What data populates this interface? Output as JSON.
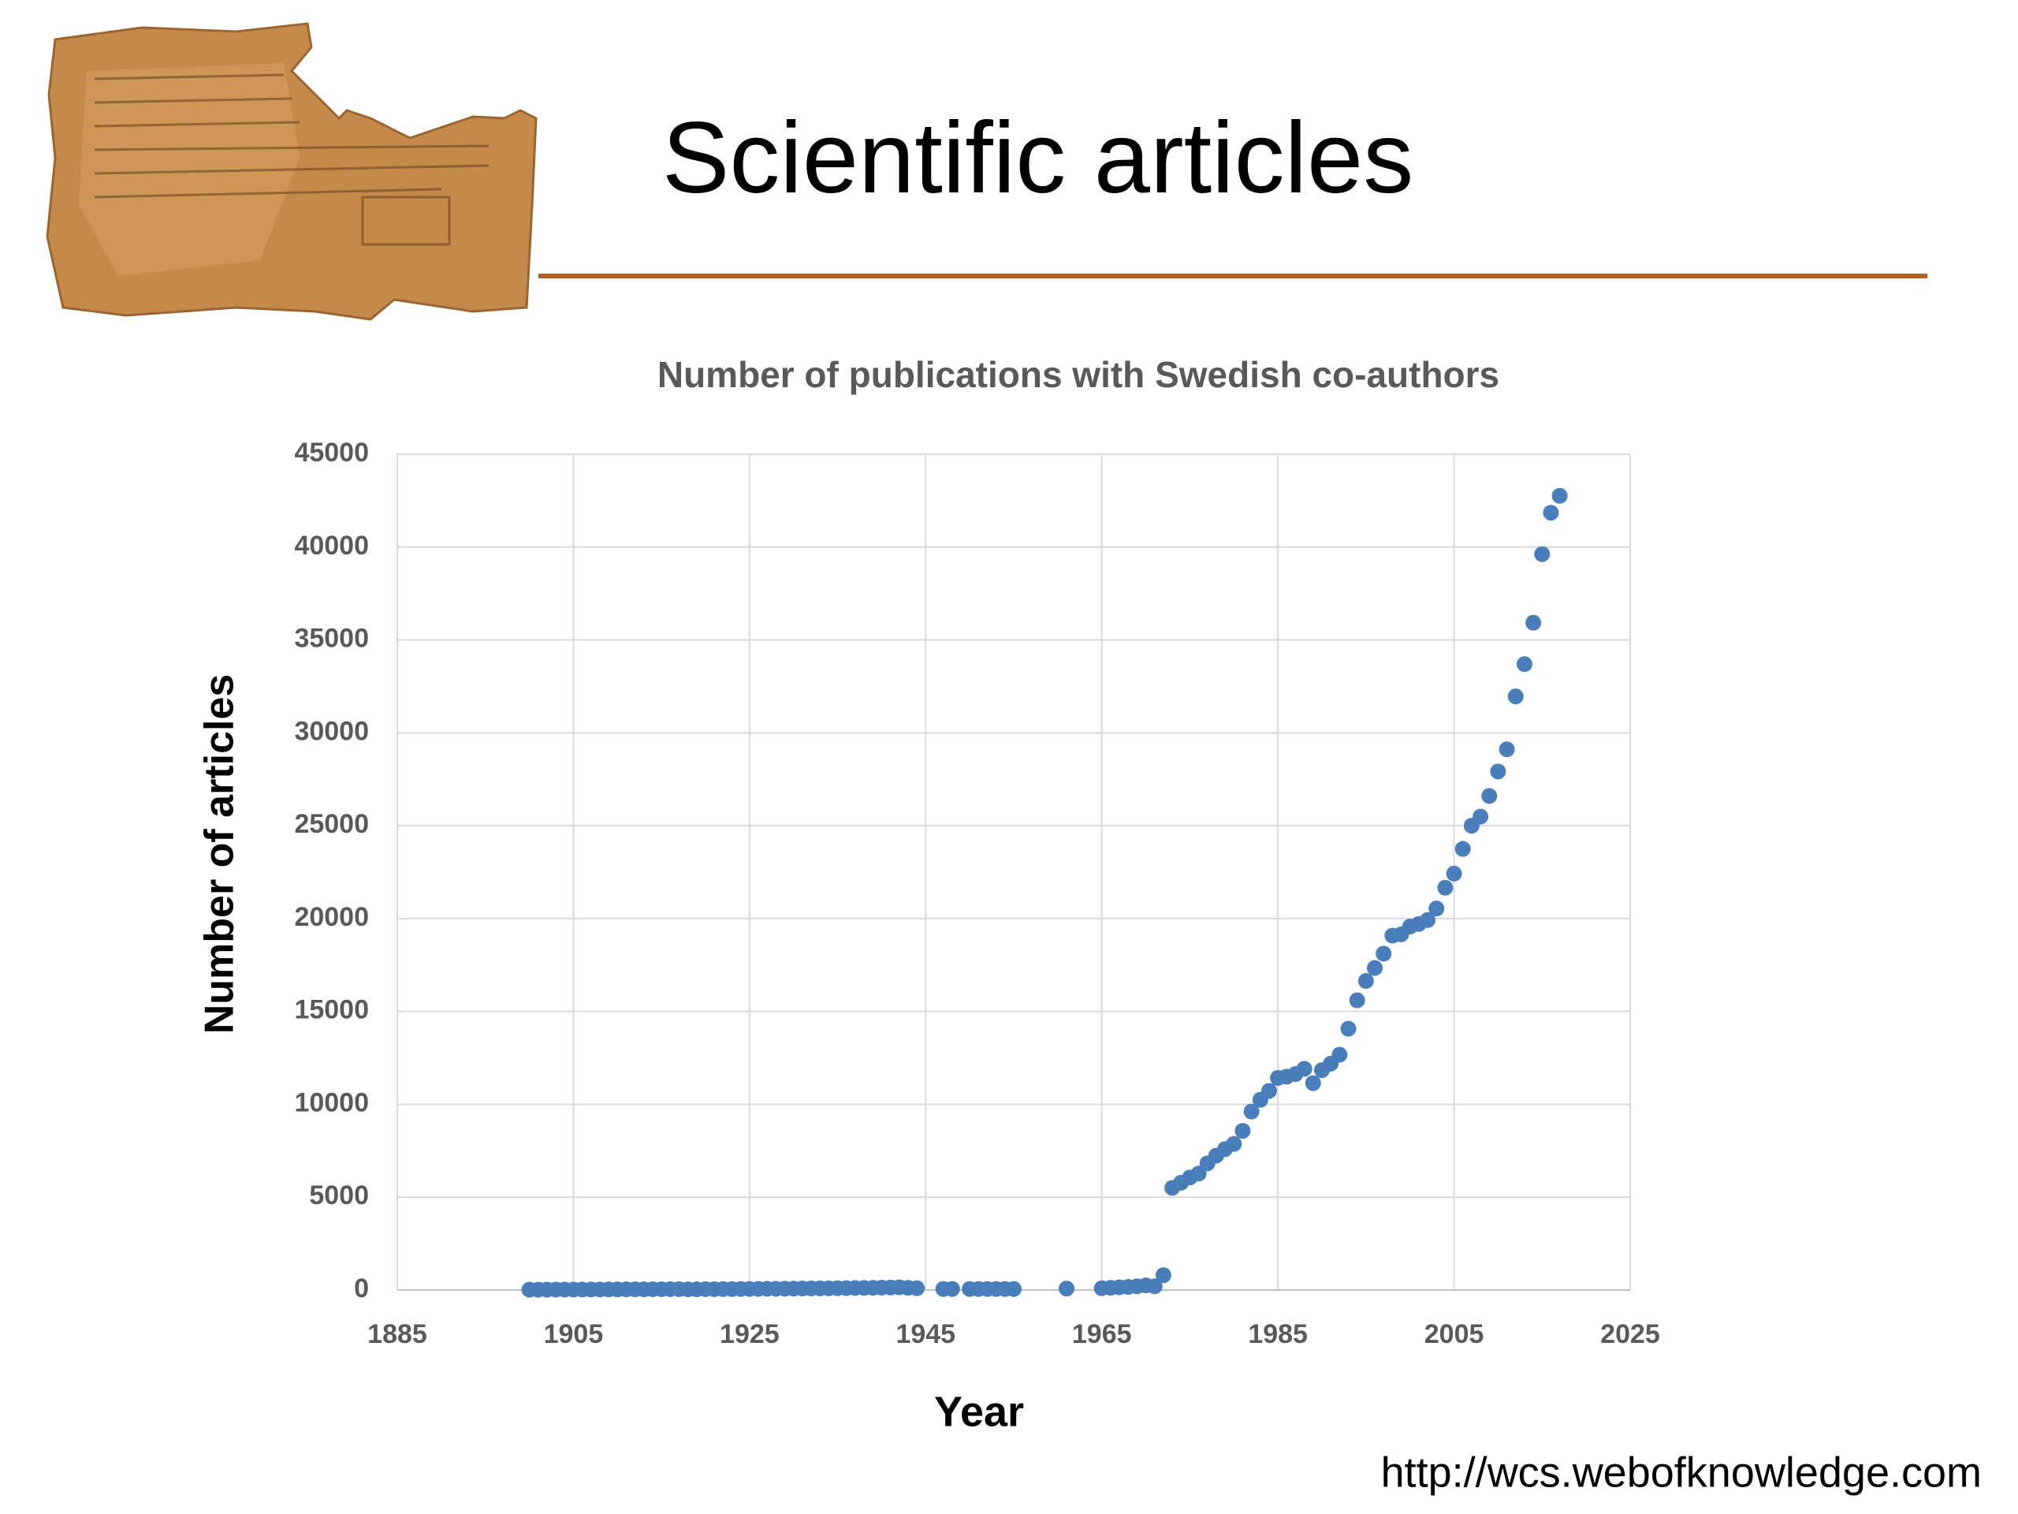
{
  "header": {
    "title": "Scientific articles"
  },
  "chart_data": {
    "type": "scatter",
    "title": "Number of publications with Swedish co-authors",
    "xlabel": "Year",
    "ylabel": "Number of articles",
    "color": "#4a7ebb",
    "grid": true,
    "xlim": [
      1885,
      2025
    ],
    "xticks": [
      1885,
      1905,
      1925,
      1945,
      1965,
      1985,
      2005,
      2025
    ],
    "ylim": [
      0,
      45000
    ],
    "yticks": [
      0,
      5000,
      10000,
      15000,
      20000,
      25000,
      30000,
      35000,
      40000,
      45000
    ],
    "x": [
      1900,
      1901,
      1902,
      1903,
      1904,
      1905,
      1906,
      1907,
      1908,
      1909,
      1910,
      1911,
      1912,
      1913,
      1914,
      1915,
      1916,
      1917,
      1918,
      1919,
      1920,
      1921,
      1922,
      1923,
      1924,
      1925,
      1926,
      1927,
      1928,
      1929,
      1930,
      1931,
      1932,
      1933,
      1934,
      1935,
      1936,
      1937,
      1938,
      1939,
      1940,
      1941,
      1942,
      1943,
      1944,
      1947,
      1948,
      1950,
      1951,
      1952,
      1953,
      1954,
      1955,
      1961,
      1965,
      1966,
      1967,
      1968,
      1969,
      1970,
      1971,
      1972,
      1973,
      1974,
      1975,
      1976,
      1977,
      1978,
      1979,
      1980,
      1981,
      1982,
      1983,
      1984,
      1985,
      1986,
      1987,
      1988,
      1989,
      1990,
      1991,
      1992,
      1993,
      1994,
      1995,
      1996,
      1997,
      1998,
      1999,
      2000,
      2001,
      2002,
      2003,
      2004,
      2005,
      2006,
      2007,
      2008,
      2009,
      2010,
      2011,
      2012,
      2013,
      2014,
      2015,
      2016,
      2017
    ],
    "values": [
      20,
      20,
      20,
      25,
      25,
      25,
      30,
      30,
      30,
      35,
      35,
      40,
      40,
      40,
      45,
      45,
      50,
      50,
      40,
      40,
      50,
      50,
      55,
      55,
      60,
      60,
      65,
      70,
      70,
      75,
      80,
      85,
      90,
      90,
      95,
      100,
      105,
      110,
      115,
      120,
      130,
      140,
      150,
      120,
      100,
      60,
      60,
      60,
      60,
      60,
      60,
      60,
      60,
      80,
      100,
      120,
      150,
      170,
      200,
      250,
      200,
      800,
      5500,
      5780,
      6060,
      6270,
      6820,
      7240,
      7590,
      7870,
      8570,
      9610,
      10240,
      10720,
      11420,
      11490,
      11630,
      11910,
      11140,
      11840,
      12190,
      12670,
      14070,
      15600,
      16640,
      17340,
      18110,
      19080,
      19150,
      19570,
      19710,
      19920,
      20540,
      21660,
      22420,
      23750,
      25000,
      25490,
      26600,
      27920,
      29110,
      31960,
      33700,
      35930,
      39620,
      41850,
      42760
    ]
  },
  "footer": {
    "url": "http://wcs.webofknowledge.com"
  }
}
